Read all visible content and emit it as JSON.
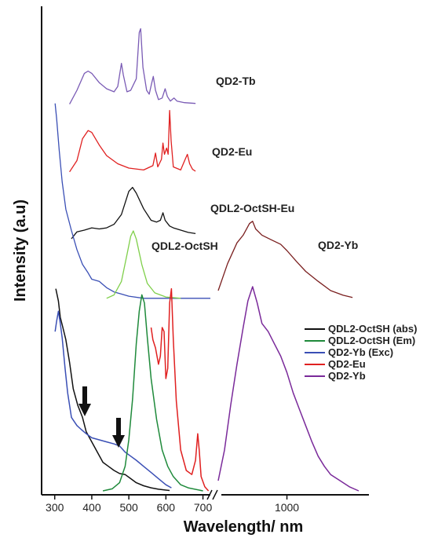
{
  "chart_data": {
    "type": "line",
    "xlabel": "Wavelength/ nm",
    "ylabel": "Intensity (a.u)",
    "x_ticks_left": [
      "300",
      "400",
      "500",
      "600",
      "700"
    ],
    "x_ticks_right": [
      "1000"
    ],
    "xlim_left": [
      290,
      720
    ],
    "xlim_right": [
      780,
      1250
    ],
    "axis_break": true,
    "upper_labels": [
      "QD2-Tb",
      "QD2-Eu",
      "QDL2-OctSH-Eu",
      "QDL2-OctSH",
      "QD2-Yb"
    ],
    "legend": {
      "placement": "lower-right",
      "entries": [
        {
          "label": "QDL2-OctSH (abs)",
          "color": "#111111"
        },
        {
          "label": "QDL2-OctSH (Em)",
          "color": "#1f8a3b"
        },
        {
          "label": "QD2-Yb (Exc)",
          "color": "#3a4fb5"
        },
        {
          "label": "QD2-Eu",
          "color": "#e02020"
        },
        {
          "label": "QD2-Yb",
          "color": "#7a2a9a"
        }
      ]
    },
    "annotations": [
      "arrow at ~385 nm",
      "arrow at ~475 nm"
    ],
    "colors": {
      "tb": "#7a5bb5",
      "eu_upper": "#e02020",
      "octsh_eu": "#111111",
      "octsh_abs_upper": "#3a4fb5",
      "octsh_em_upper": "#7fcf4a",
      "yb_upper": "#7a1f1f",
      "abs": "#111111",
      "em": "#1f8a3b",
      "exc": "#3a4fb5",
      "eu": "#e02020",
      "yb": "#7a2a9a"
    },
    "series_upper": [
      {
        "key": "tb",
        "offset": 0.8,
        "scale": 0.16,
        "points": [
          [
            340,
            0.02
          ],
          [
            360,
            0.2
          ],
          [
            380,
            0.42
          ],
          [
            390,
            0.45
          ],
          [
            400,
            0.42
          ],
          [
            420,
            0.3
          ],
          [
            440,
            0.22
          ],
          [
            460,
            0.18
          ],
          [
            470,
            0.25
          ],
          [
            480,
            0.55
          ],
          [
            485,
            0.4
          ],
          [
            495,
            0.18
          ],
          [
            505,
            0.2
          ],
          [
            520,
            0.35
          ],
          [
            528,
            0.95
          ],
          [
            532,
            1.0
          ],
          [
            538,
            0.5
          ],
          [
            548,
            0.2
          ],
          [
            555,
            0.15
          ],
          [
            562,
            0.3
          ],
          [
            566,
            0.38
          ],
          [
            572,
            0.2
          ],
          [
            580,
            0.08
          ],
          [
            590,
            0.1
          ],
          [
            598,
            0.22
          ],
          [
            604,
            0.12
          ],
          [
            612,
            0.06
          ],
          [
            622,
            0.1
          ],
          [
            630,
            0.06
          ],
          [
            640,
            0.05
          ],
          [
            650,
            0.04
          ],
          [
            680,
            0.03
          ]
        ]
      },
      {
        "key": "eu_upper",
        "offset": 0.66,
        "scale": 0.13,
        "points": [
          [
            340,
            0.02
          ],
          [
            360,
            0.2
          ],
          [
            375,
            0.55
          ],
          [
            390,
            0.68
          ],
          [
            400,
            0.65
          ],
          [
            420,
            0.45
          ],
          [
            440,
            0.28
          ],
          [
            470,
            0.15
          ],
          [
            500,
            0.08
          ],
          [
            540,
            0.05
          ],
          [
            565,
            0.12
          ],
          [
            572,
            0.32
          ],
          [
            578,
            0.1
          ],
          [
            588,
            0.22
          ],
          [
            592,
            0.48
          ],
          [
            596,
            0.3
          ],
          [
            602,
            0.4
          ],
          [
            606,
            0.3
          ],
          [
            610,
            1.0
          ],
          [
            614,
            0.52
          ],
          [
            620,
            0.1
          ],
          [
            640,
            0.05
          ],
          [
            652,
            0.22
          ],
          [
            658,
            0.3
          ],
          [
            664,
            0.15
          ],
          [
            672,
            0.06
          ],
          [
            680,
            0.03
          ]
        ]
      },
      {
        "key": "octsh_eu",
        "offset": 0.52,
        "scale": 0.12,
        "points": [
          [
            345,
            0.03
          ],
          [
            360,
            0.15
          ],
          [
            380,
            0.18
          ],
          [
            400,
            0.22
          ],
          [
            420,
            0.2
          ],
          [
            440,
            0.22
          ],
          [
            460,
            0.28
          ],
          [
            480,
            0.45
          ],
          [
            500,
            0.85
          ],
          [
            510,
            0.92
          ],
          [
            520,
            0.82
          ],
          [
            540,
            0.55
          ],
          [
            560,
            0.35
          ],
          [
            575,
            0.32
          ],
          [
            585,
            0.35
          ],
          [
            592,
            0.48
          ],
          [
            598,
            0.35
          ],
          [
            610,
            0.25
          ],
          [
            620,
            0.22
          ],
          [
            640,
            0.18
          ],
          [
            660,
            0.14
          ],
          [
            680,
            0.12
          ]
        ]
      },
      {
        "key": "octsh_abs_upper",
        "offset": 0.4,
        "scale": 0.44,
        "points": [
          [
            301,
            0.92
          ],
          [
            305,
            0.85
          ],
          [
            312,
            0.7
          ],
          [
            320,
            0.55
          ],
          [
            330,
            0.42
          ],
          [
            345,
            0.32
          ],
          [
            360,
            0.23
          ],
          [
            375,
            0.16
          ],
          [
            390,
            0.12
          ],
          [
            400,
            0.09
          ],
          [
            420,
            0.08
          ],
          [
            440,
            0.05
          ],
          [
            460,
            0.03
          ],
          [
            480,
            0.02
          ],
          [
            500,
            0.01
          ],
          [
            540,
            0.0
          ],
          [
            600,
            0.0
          ],
          [
            720,
            0.0
          ]
        ]
      },
      {
        "key": "octsh_em_upper",
        "offset": 0.4,
        "scale": 0.14,
        "points": [
          [
            440,
            0.0
          ],
          [
            460,
            0.05
          ],
          [
            480,
            0.25
          ],
          [
            495,
            0.65
          ],
          [
            505,
            0.92
          ],
          [
            512,
            1.0
          ],
          [
            520,
            0.88
          ],
          [
            535,
            0.5
          ],
          [
            550,
            0.22
          ],
          [
            570,
            0.08
          ],
          [
            600,
            0.02
          ],
          [
            640,
            0.0
          ]
        ]
      }
    ],
    "series_upper_yb": {
      "key": "yb_upper",
      "offset": 0.4,
      "scale": 0.16,
      "points": [
        [
          780,
          0.1
        ],
        [
          810,
          0.45
        ],
        [
          840,
          0.72
        ],
        [
          860,
          0.82
        ],
        [
          880,
          0.97
        ],
        [
          890,
          1.0
        ],
        [
          900,
          0.9
        ],
        [
          920,
          0.82
        ],
        [
          950,
          0.76
        ],
        [
          980,
          0.7
        ],
        [
          1000,
          0.62
        ],
        [
          1030,
          0.48
        ],
        [
          1060,
          0.35
        ],
        [
          1100,
          0.22
        ],
        [
          1140,
          0.1
        ],
        [
          1180,
          0.04
        ],
        [
          1210,
          0.01
        ]
      ]
    },
    "series_lower": [
      {
        "key": "abs",
        "points": [
          [
            303,
            0.99
          ],
          [
            310,
            0.93
          ],
          [
            315,
            0.85
          ],
          [
            322,
            0.8
          ],
          [
            330,
            0.74
          ],
          [
            340,
            0.63
          ],
          [
            350,
            0.5
          ],
          [
            362,
            0.42
          ],
          [
            375,
            0.36
          ],
          [
            385,
            0.29
          ],
          [
            400,
            0.24
          ],
          [
            415,
            0.19
          ],
          [
            430,
            0.14
          ],
          [
            445,
            0.12
          ],
          [
            460,
            0.1
          ],
          [
            475,
            0.085
          ],
          [
            490,
            0.08
          ],
          [
            505,
            0.06
          ],
          [
            520,
            0.04
          ],
          [
            540,
            0.025
          ],
          [
            560,
            0.015
          ],
          [
            580,
            0.008
          ],
          [
            600,
            0.004
          ],
          [
            610,
            0.002
          ]
        ]
      },
      {
        "key": "exc",
        "points": [
          [
            301,
            0.78
          ],
          [
            305,
            0.83
          ],
          [
            310,
            0.88
          ],
          [
            315,
            0.82
          ],
          [
            320,
            0.75
          ],
          [
            328,
            0.6
          ],
          [
            335,
            0.48
          ],
          [
            345,
            0.36
          ],
          [
            360,
            0.32
          ],
          [
            372,
            0.3
          ],
          [
            385,
            0.28
          ],
          [
            400,
            0.26
          ],
          [
            420,
            0.25
          ],
          [
            440,
            0.24
          ],
          [
            460,
            0.23
          ],
          [
            475,
            0.22
          ],
          [
            490,
            0.19
          ],
          [
            505,
            0.17
          ],
          [
            520,
            0.15
          ],
          [
            540,
            0.12
          ],
          [
            560,
            0.09
          ],
          [
            580,
            0.06
          ],
          [
            600,
            0.03
          ],
          [
            615,
            0.015
          ]
        ]
      },
      {
        "key": "em",
        "points": [
          [
            430,
            0.0
          ],
          [
            455,
            0.01
          ],
          [
            475,
            0.04
          ],
          [
            490,
            0.12
          ],
          [
            500,
            0.25
          ],
          [
            510,
            0.45
          ],
          [
            520,
            0.72
          ],
          [
            528,
            0.88
          ],
          [
            535,
            0.96
          ],
          [
            542,
            0.92
          ],
          [
            550,
            0.75
          ],
          [
            560,
            0.55
          ],
          [
            575,
            0.35
          ],
          [
            590,
            0.2
          ],
          [
            605,
            0.12
          ],
          [
            620,
            0.07
          ],
          [
            640,
            0.03
          ],
          [
            660,
            0.015
          ],
          [
            700,
            0.0
          ]
        ]
      },
      {
        "key": "eu",
        "points": [
          [
            560,
            0.8
          ],
          [
            565,
            0.74
          ],
          [
            572,
            0.7
          ],
          [
            580,
            0.62
          ],
          [
            585,
            0.66
          ],
          [
            590,
            0.8
          ],
          [
            595,
            0.78
          ],
          [
            600,
            0.55
          ],
          [
            605,
            0.6
          ],
          [
            610,
            0.92
          ],
          [
            615,
            0.99
          ],
          [
            620,
            0.74
          ],
          [
            628,
            0.44
          ],
          [
            640,
            0.2
          ],
          [
            655,
            0.1
          ],
          [
            670,
            0.08
          ],
          [
            680,
            0.15
          ],
          [
            686,
            0.28
          ],
          [
            690,
            0.2
          ],
          [
            695,
            0.07
          ],
          [
            705,
            0.02
          ],
          [
            715,
            0.0
          ]
        ]
      },
      {
        "key": "yb",
        "points": [
          [
            780,
            0.05
          ],
          [
            800,
            0.2
          ],
          [
            820,
            0.42
          ],
          [
            840,
            0.62
          ],
          [
            860,
            0.8
          ],
          [
            875,
            0.93
          ],
          [
            890,
            1.0
          ],
          [
            905,
            0.92
          ],
          [
            920,
            0.82
          ],
          [
            940,
            0.78
          ],
          [
            960,
            0.72
          ],
          [
            980,
            0.66
          ],
          [
            1000,
            0.58
          ],
          [
            1020,
            0.48
          ],
          [
            1040,
            0.4
          ],
          [
            1060,
            0.32
          ],
          [
            1080,
            0.24
          ],
          [
            1100,
            0.17
          ],
          [
            1120,
            0.12
          ],
          [
            1140,
            0.08
          ],
          [
            1170,
            0.05
          ],
          [
            1200,
            0.02
          ],
          [
            1230,
            0.0
          ]
        ]
      }
    ]
  }
}
